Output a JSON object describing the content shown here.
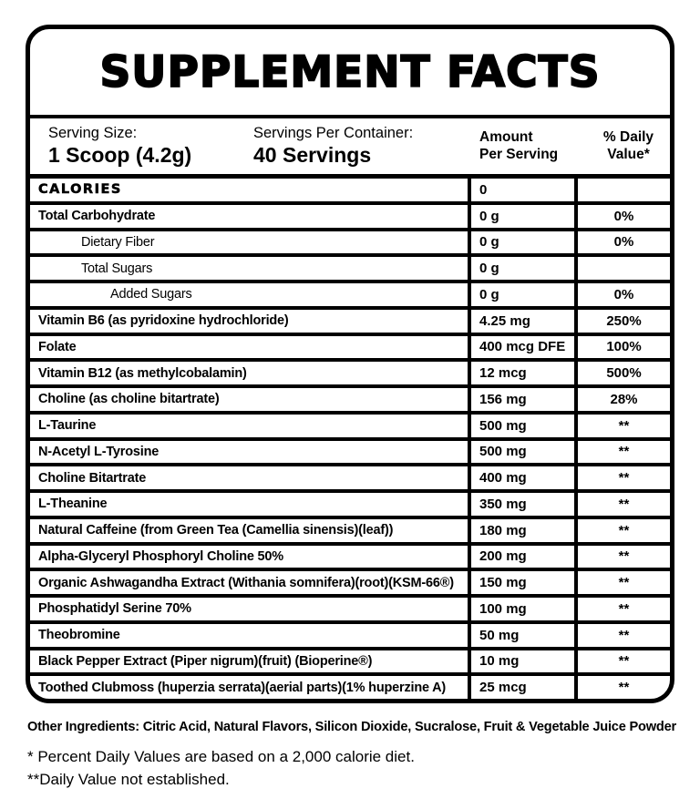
{
  "title": "SUPPLEMENT FACTS",
  "serving": {
    "size_label": "Serving Size:",
    "size_value": "1 Scoop (4.2g)",
    "per_container_label": "Servings Per Container:",
    "per_container_value": "40 Servings"
  },
  "columns": {
    "amount_header": "Amount\nPer Serving",
    "daily_value_header": "% Daily\nValue*"
  },
  "rows": [
    {
      "name": "CALORIES",
      "amount": "0",
      "dv": "",
      "indent": 0,
      "style": "display"
    },
    {
      "name": "Total Carbohydrate",
      "amount": "0 g",
      "dv": "0%",
      "indent": 0,
      "style": "bold"
    },
    {
      "name": "Dietary Fiber",
      "amount": "0 g",
      "dv": "0%",
      "indent": 1,
      "style": "regular"
    },
    {
      "name": "Total Sugars",
      "amount": "0 g",
      "dv": "",
      "indent": 1,
      "style": "regular"
    },
    {
      "name": "Added Sugars",
      "amount": "0 g",
      "dv": "0%",
      "indent": 2,
      "style": "regular"
    },
    {
      "name": "Vitamin B6 (as pyridoxine hydrochloride)",
      "amount": "4.25 mg",
      "dv": "250%",
      "indent": 0,
      "style": "bold"
    },
    {
      "name": "Folate",
      "amount": "400 mcg DFE",
      "dv": "100%",
      "indent": 0,
      "style": "bold"
    },
    {
      "name": "Vitamin B12 (as methylcobalamin)",
      "amount": "12 mcg",
      "dv": "500%",
      "indent": 0,
      "style": "bold"
    },
    {
      "name": "Choline (as choline bitartrate)",
      "amount": "156 mg",
      "dv": "28%",
      "indent": 0,
      "style": "bold"
    },
    {
      "name": "L-Taurine",
      "amount": "500 mg",
      "dv": "**",
      "indent": 0,
      "style": "bold"
    },
    {
      "name": "N-Acetyl L-Tyrosine",
      "amount": "500 mg",
      "dv": "**",
      "indent": 0,
      "style": "bold"
    },
    {
      "name": "Choline Bitartrate",
      "amount": "400 mg",
      "dv": "**",
      "indent": 0,
      "style": "bold"
    },
    {
      "name": "L-Theanine",
      "amount": "350 mg",
      "dv": "**",
      "indent": 0,
      "style": "bold"
    },
    {
      "name": "Natural Caffeine (from Green Tea (Camellia sinensis)(leaf))",
      "amount": "180 mg",
      "dv": "**",
      "indent": 0,
      "style": "bold"
    },
    {
      "name": "Alpha-Glyceryl Phosphoryl Choline 50%",
      "amount": "200 mg",
      "dv": "**",
      "indent": 0,
      "style": "bold"
    },
    {
      "name": "Organic Ashwagandha Extract (Withania somnifera)(root)(KSM-66®)",
      "amount": "150 mg",
      "dv": "**",
      "indent": 0,
      "style": "bold"
    },
    {
      "name": "Phosphatidyl Serine 70%",
      "amount": "100 mg",
      "dv": "**",
      "indent": 0,
      "style": "bold"
    },
    {
      "name": "Theobromine",
      "amount": "50 mg",
      "dv": "**",
      "indent": 0,
      "style": "bold"
    },
    {
      "name": "Black Pepper Extract (Piper nigrum)(fruit) (Bioperine®)",
      "amount": "10 mg",
      "dv": "**",
      "indent": 0,
      "style": "bold"
    },
    {
      "name": "Toothed Clubmoss (huperzia serrata)(aerial parts)(1% huperzine A)",
      "amount": "25 mcg",
      "dv": "**",
      "indent": 0,
      "style": "bold"
    }
  ],
  "footer": {
    "other_ingredients_label": "Other Ingredients:",
    "other_ingredients_value": "Citric Acid, Natural Flavors, Silicon Dioxide, Sucralose, Fruit & Vegetable Juice Powder",
    "footnote_1": "* Percent Daily Values are based on a 2,000 calorie diet.",
    "footnote_2": "**Daily Value not established."
  },
  "colors": {
    "ink": "#000000",
    "background": "#ffffff"
  }
}
